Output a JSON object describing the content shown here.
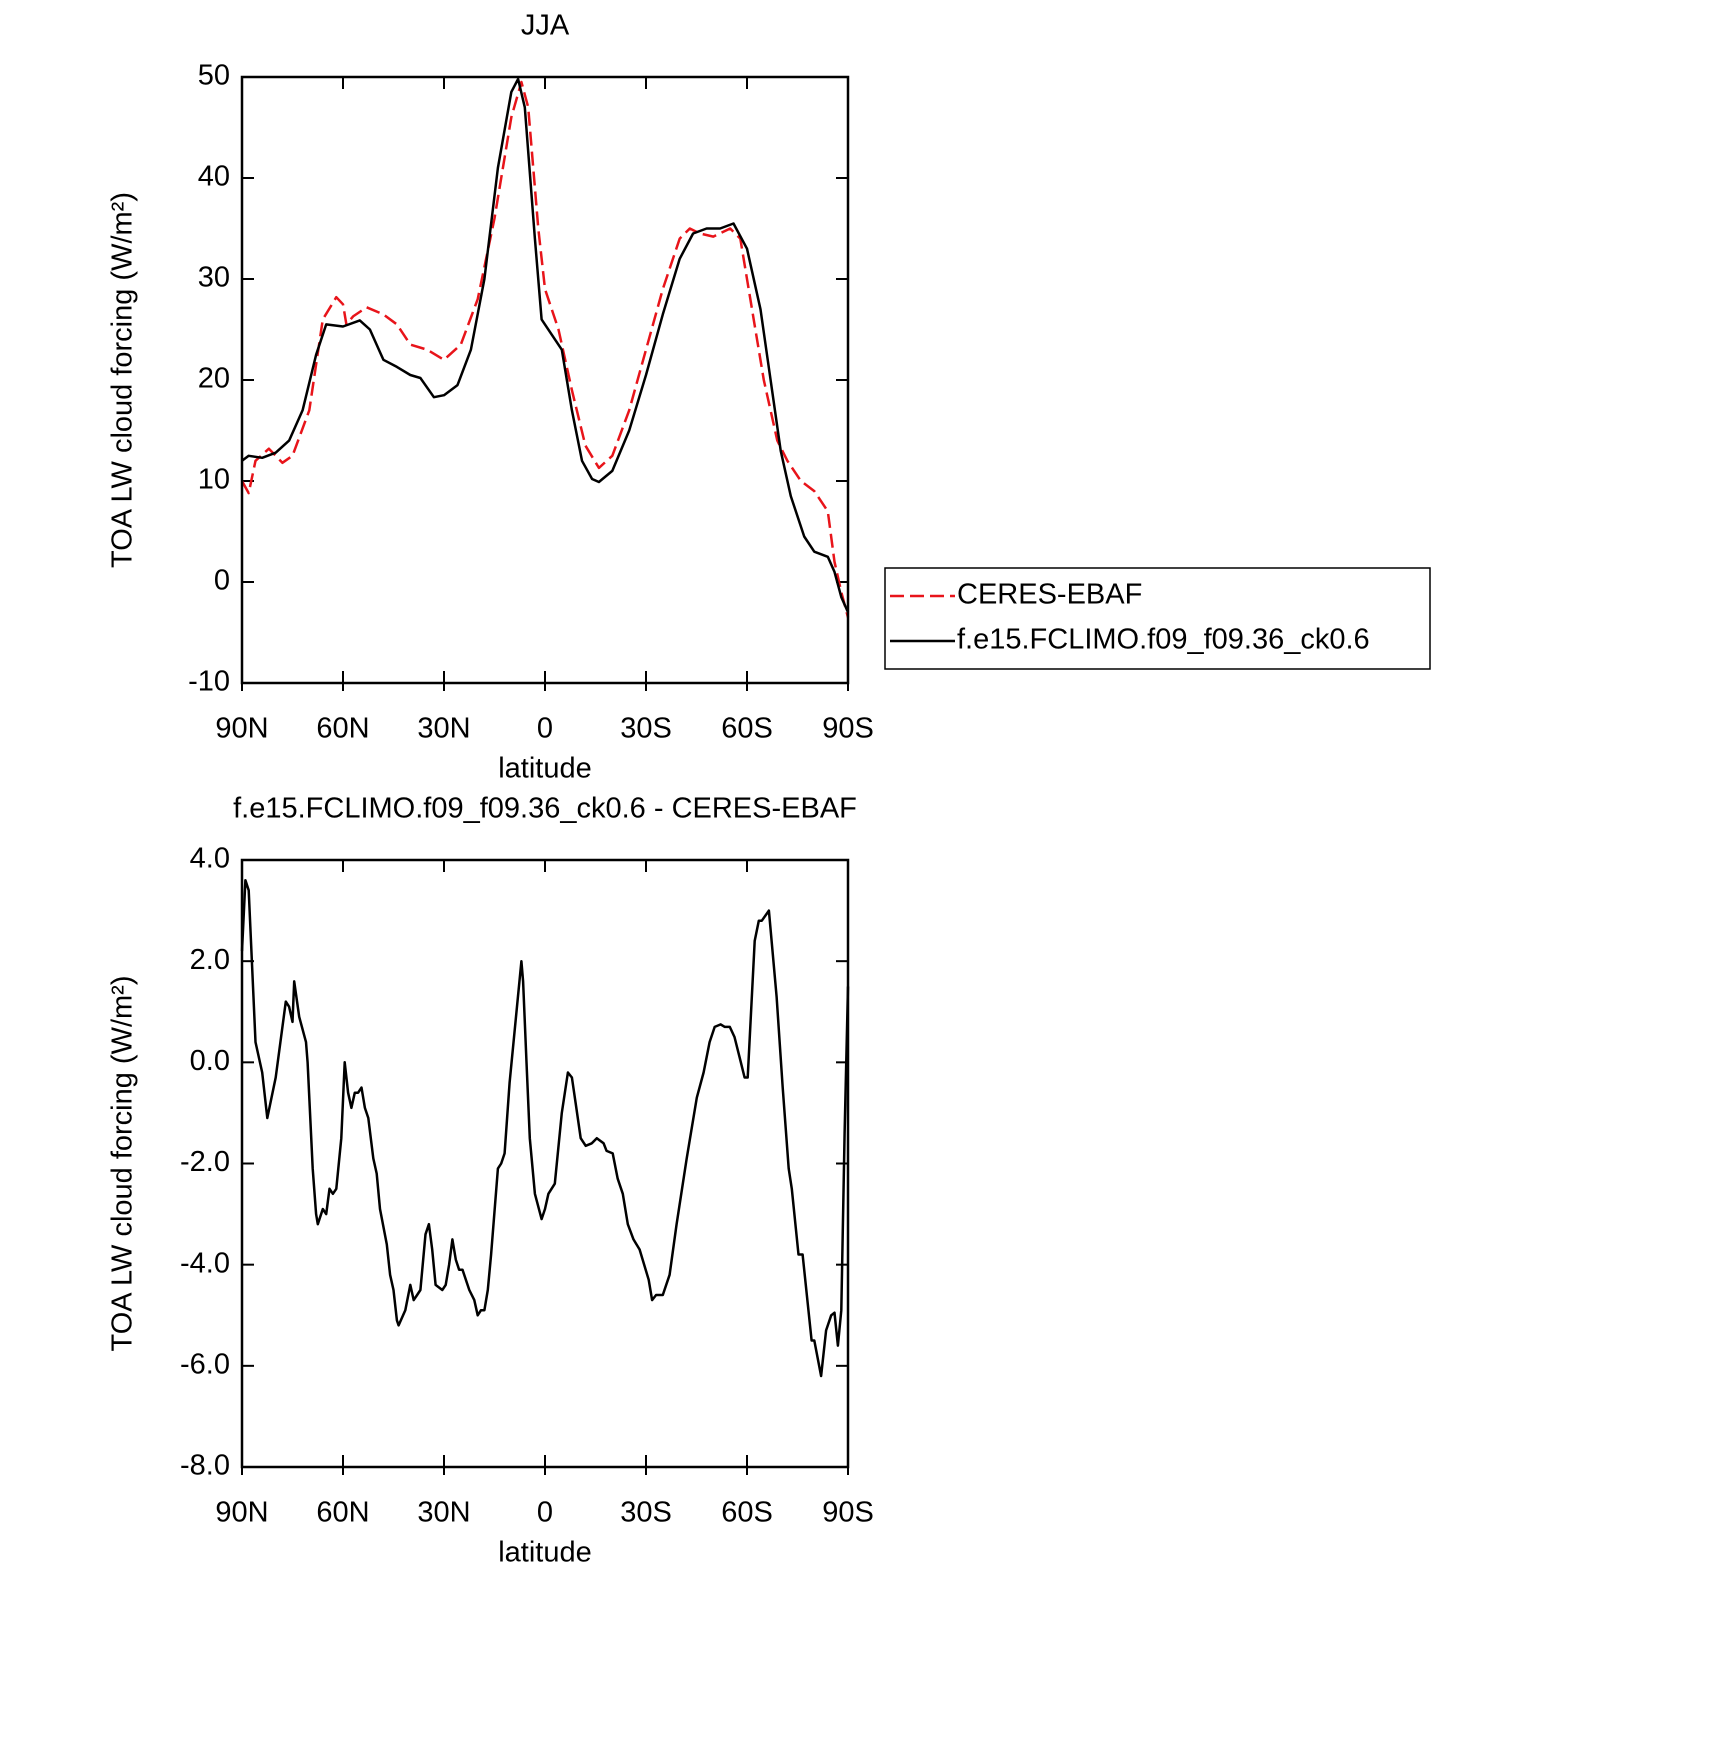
{
  "chart_data": [
    {
      "type": "line",
      "title": "JJA",
      "xlabel": "latitude",
      "ylabel": "TOA LW cloud forcing (W/m²)",
      "xlim": [
        90,
        -90
      ],
      "ylim": [
        -10,
        50
      ],
      "xticks": [
        {
          "value": 90,
          "label": "90N"
        },
        {
          "value": 60,
          "label": "60N"
        },
        {
          "value": 30,
          "label": "30N"
        },
        0,
        {
          "value": -30,
          "label": "30S"
        },
        {
          "value": -60,
          "label": "60S"
        },
        {
          "value": -90,
          "label": "90S"
        }
      ],
      "yticks": [
        -10,
        0,
        10,
        20,
        30,
        40,
        50
      ],
      "legend": "right",
      "series": [
        {
          "name": "CERES-EBAF",
          "color": "#e8141a",
          "dashed": true,
          "x": [
            90,
            88,
            86,
            82,
            78,
            75,
            70,
            66,
            62,
            60,
            59,
            57,
            53,
            48,
            44,
            40,
            35,
            30,
            25,
            20,
            15,
            10,
            7,
            5,
            2,
            0,
            -4,
            -8,
            -12,
            -16,
            -20,
            -25,
            -30,
            -35,
            -40,
            -43,
            -46,
            -50,
            -55,
            -58,
            -62,
            -65,
            -69,
            -72,
            -76,
            -80,
            -84,
            -86,
            -88,
            -90
          ],
          "values": [
            10,
            8.8,
            12,
            13.2,
            11.8,
            12.5,
            17,
            26,
            28.2,
            27.5,
            25.5,
            26.3,
            27.2,
            26.5,
            25.5,
            23.5,
            23,
            22,
            23.5,
            28,
            36,
            46,
            49.5,
            47,
            35,
            29,
            25,
            19,
            13.5,
            11.3,
            12.5,
            17,
            23,
            29,
            34,
            35,
            34.5,
            34.2,
            35,
            34,
            26,
            20,
            14,
            12,
            10,
            9,
            7,
            2,
            -1,
            -3.5
          ]
        },
        {
          "name": "f.e15.FCLIMO.f09_f09.36_ck0.6",
          "color": "#000000",
          "dashed": false,
          "x": [
            90,
            88,
            84,
            80,
            76,
            72,
            68,
            65,
            60,
            55,
            52,
            48,
            44,
            40,
            37,
            33,
            30,
            26,
            22,
            18,
            14,
            10,
            8,
            6,
            3,
            1,
            -2,
            -5,
            -8,
            -11,
            -14,
            -16,
            -20,
            -25,
            -30,
            -35,
            -40,
            -44,
            -48,
            -52,
            -56,
            -60,
            -64,
            -67,
            -70,
            -73,
            -77,
            -80,
            -84,
            -86,
            -88,
            -90
          ],
          "values": [
            12,
            12.5,
            12.3,
            12.8,
            14,
            17,
            22.5,
            25.5,
            25.3,
            25.9,
            25,
            22,
            21.3,
            20.5,
            20.2,
            18.3,
            18.5,
            19.5,
            23,
            30,
            41,
            48.5,
            49.8,
            47,
            34,
            26,
            24.5,
            23,
            17,
            12,
            10.2,
            9.9,
            11,
            15,
            20.5,
            26.5,
            32,
            34.5,
            35,
            35,
            35.5,
            33,
            27,
            20,
            13,
            8.5,
            4.5,
            3,
            2.5,
            1,
            -1.5,
            -3
          ]
        }
      ]
    },
    {
      "type": "line",
      "title": "f.e15.FCLIMO.f09_f09.36_ck0.6 - CERES-EBAF",
      "xlabel": "latitude",
      "ylabel": "TOA LW cloud forcing (W/m²)",
      "xlim": [
        90,
        -90
      ],
      "ylim": [
        -8,
        4
      ],
      "xticks": [
        {
          "value": 90,
          "label": "90N"
        },
        {
          "value": 60,
          "label": "60N"
        },
        {
          "value": 30,
          "label": "30N"
        },
        0,
        {
          "value": -30,
          "label": "30S"
        },
        {
          "value": -60,
          "label": "60S"
        },
        {
          "value": -90,
          "label": "90S"
        }
      ],
      "yticks": [
        {
          "value": -8,
          "label": "-8.0"
        },
        {
          "value": -6,
          "label": "-6.0"
        },
        {
          "value": -4,
          "label": "-4.0"
        },
        {
          "value": -2,
          "label": "-2.0"
        },
        {
          "value": 0,
          "label": "0.0"
        },
        {
          "value": 2,
          "label": "2.0"
        },
        {
          "value": 4,
          "label": "4.0"
        }
      ],
      "series": [
        {
          "color": "#000000",
          "dashed": false,
          "x": [
            90,
            89,
            88,
            86,
            84,
            82.5,
            80,
            77,
            76,
            75,
            74.5,
            73,
            71,
            70.5,
            69,
            68,
            67.5,
            66,
            65,
            64,
            63,
            62,
            60.5,
            59.5,
            58.5,
            57.5,
            56.5,
            55.5,
            54.5,
            53.5,
            52.5,
            51,
            50,
            49,
            47,
            46,
            45,
            44,
            43.5,
            41.5,
            40,
            39,
            38,
            37,
            35.5,
            34.5,
            33.5,
            32.5,
            30.5,
            29.5,
            28.5,
            27.5,
            26.5,
            25.5,
            24.5,
            22.5,
            21,
            20,
            19,
            18,
            17,
            16,
            14,
            13,
            12,
            10.5,
            7,
            6.5,
            5.5,
            4.5,
            3,
            1,
            0,
            -1,
            -2.9,
            -5,
            -6.8,
            -8,
            -9.1,
            -10.6,
            -12.1,
            -13.9,
            -15.4,
            -17.4,
            -18.3,
            -20.1,
            -21.6,
            -23.1,
            -24.6,
            -26.3,
            -28.1,
            -30.8,
            -31.8,
            -33,
            -35,
            -37,
            -39.1,
            -42.1,
            -45.1,
            -47.1,
            -48.9,
            -50.4,
            -52.2,
            -53.4,
            -54.9,
            -56.3,
            -57.8,
            -59.3,
            -60.2,
            -62.3,
            -63.5,
            -64.4,
            -66.5,
            -68.8,
            -70.6,
            -72.4,
            -73.3,
            -75.3,
            -76.5,
            -79.2,
            -80,
            -82,
            -83.5,
            -85,
            -86,
            -87,
            -88,
            -89,
            -90
          ],
          "values": [
            2.2,
            3.6,
            3.4,
            0.4,
            -0.2,
            -1.1,
            -0.3,
            1.2,
            1.1,
            0.8,
            1.6,
            0.9,
            0.4,
            0.0,
            -2.1,
            -3.0,
            -3.2,
            -2.9,
            -3.0,
            -2.5,
            -2.6,
            -2.5,
            -1.5,
            0.0,
            -0.6,
            -0.9,
            -0.6,
            -0.6,
            -0.5,
            -0.9,
            -1.1,
            -1.9,
            -2.2,
            -2.9,
            -3.6,
            -4.2,
            -4.5,
            -5.1,
            -5.2,
            -4.9,
            -4.4,
            -4.7,
            -4.6,
            -4.5,
            -3.4,
            -3.2,
            -3.7,
            -4.4,
            -4.5,
            -4.4,
            -4.0,
            -3.5,
            -3.9,
            -4.1,
            -4.1,
            -4.5,
            -4.7,
            -5.0,
            -4.9,
            -4.9,
            -4.5,
            -3.8,
            -2.1,
            -2.0,
            -1.8,
            -0.4,
            2.0,
            1.6,
            0.0,
            -1.5,
            -2.6,
            -3.1,
            -2.9,
            -2.6,
            -2.4,
            -1.0,
            -0.2,
            -0.3,
            -0.8,
            -1.5,
            -1.65,
            -1.6,
            -1.5,
            -1.6,
            -1.75,
            -1.8,
            -2.3,
            -2.6,
            -3.2,
            -3.5,
            -3.7,
            -4.3,
            -4.7,
            -4.6,
            -4.6,
            -4.2,
            -3.2,
            -1.9,
            -0.7,
            -0.2,
            0.4,
            0.7,
            0.75,
            0.7,
            0.7,
            0.5,
            0.1,
            -0.3,
            -0.3,
            2.4,
            2.8,
            2.8,
            3.0,
            1.3,
            -0.5,
            -2.1,
            -2.5,
            -3.8,
            -3.8,
            -5.5,
            -5.5,
            -6.2,
            -5.3,
            -5.0,
            -4.95,
            -5.6,
            -4.9,
            -1.4,
            1.5
          ]
        }
      ]
    }
  ]
}
